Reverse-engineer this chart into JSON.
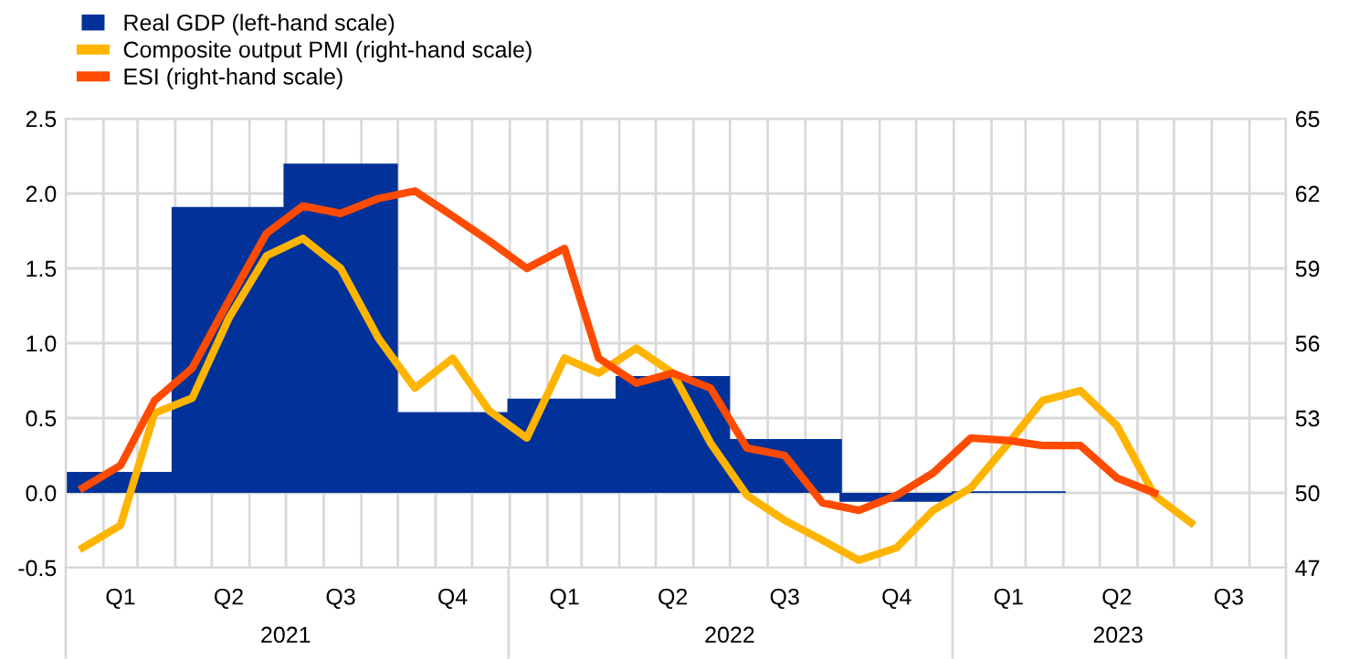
{
  "chart_data": {
    "type": "line",
    "legend": "top left",
    "grid": true,
    "xlim": [
      "2021-01-01",
      "2023-10-01"
    ],
    "xticks": [
      {
        "value": "2021-01-01",
        "label": null
      },
      {
        "value": "2021-02-01",
        "label": null
      },
      {
        "value": "2021-03-01",
        "label": null
      },
      {
        "value": "2021-04-01",
        "label": null
      },
      {
        "value": "2021-05-01",
        "label": null
      },
      {
        "value": "2021-06-01",
        "label": null
      },
      {
        "value": "2021-07-01",
        "label": null
      },
      {
        "value": "2021-08-01",
        "label": null
      },
      {
        "value": "2021-09-01",
        "label": null
      },
      {
        "value": "2021-10-01",
        "label": null
      },
      {
        "value": "2021-11-01",
        "label": null
      },
      {
        "value": "2021-12-01",
        "label": null
      },
      {
        "value": "2022-01-01",
        "label": null
      },
      {
        "value": "2022-02-01",
        "label": null
      },
      {
        "value": "2022-03-01",
        "label": null
      },
      {
        "value": "2022-04-01",
        "label": null
      },
      {
        "value": "2022-05-01",
        "label": null
      },
      {
        "value": "2022-06-01",
        "label": null
      },
      {
        "value": "2022-07-01",
        "label": null
      },
      {
        "value": "2022-08-01",
        "label": null
      },
      {
        "value": "2022-09-01",
        "label": null
      },
      {
        "value": "2022-10-01",
        "label": null
      },
      {
        "value": "2022-11-01",
        "label": null
      },
      {
        "value": "2022-12-01",
        "label": null
      },
      {
        "value": "2023-01-01",
        "label": null
      },
      {
        "value": "2023-02-01",
        "label": null
      },
      {
        "value": "2023-03-01",
        "label": null
      },
      {
        "value": "2023-04-01",
        "label": null
      },
      {
        "value": "2023-05-01",
        "label": null
      },
      {
        "value": "2023-06-01",
        "label": null
      },
      {
        "value": "2023-07-01",
        "label": null
      },
      {
        "value": "2023-08-01",
        "label": null
      },
      {
        "value": "2023-09-01",
        "label": null
      },
      {
        "value": "2023-10-01",
        "label": null
      },
      {
        "value": "2021-02-15",
        "label": "Q1"
      },
      {
        "value": "2021-05-15",
        "label": "Q2"
      },
      {
        "value": "2021-08-15",
        "label": "Q3"
      },
      {
        "value": "2021-11-15",
        "label": "Q4"
      },
      {
        "value": "2022-02-15",
        "label": "Q1"
      },
      {
        "value": "2022-05-15",
        "label": "Q2"
      },
      {
        "value": "2022-08-15",
        "label": "Q3"
      },
      {
        "value": "2022-11-15",
        "label": "Q4"
      },
      {
        "value": "2023-02-15",
        "label": "Q1"
      },
      {
        "value": "2023-05-15",
        "label": "Q2"
      },
      {
        "value": "2023-08-15",
        "label": "Q3"
      }
    ],
    "annotations": [
      "2021",
      "2022",
      "2023"
    ],
    "ylim": [
      -0.5,
      2.5
    ],
    "yticks": [
      -0.5,
      {
        "value": 0,
        "label": "0.0"
      },
      0.5,
      {
        "value": 1,
        "label": "1.0"
      },
      1.5,
      {
        "value": 2,
        "label": "2.0"
      },
      2.5
    ],
    "y2lim": [
      47,
      65
    ],
    "y2ticks": [
      47,
      50,
      53,
      56,
      59,
      62,
      65
    ],
    "series": [
      {
        "name": "Real GDP (left-hand scale)",
        "type": "bar",
        "color": "#003299",
        "x": [
          "2021-02-15",
          "2021-05-15",
          "2021-08-15",
          "2021-11-15",
          "2022-02-15",
          "2022-05-15",
          "2022-08-15",
          "2022-11-15",
          "2023-02-15"
        ],
        "values": [
          0.14,
          1.91,
          2.2,
          0.54,
          0.63,
          0.78,
          0.36,
          -0.06,
          0.01
        ]
      },
      {
        "name": "Composite output PMI (right-hand scale)",
        "axis": "y2",
        "color": "#ffb400",
        "x": [
          "2021-01-15",
          "2021-02-15",
          "2021-03-15",
          "2021-04-15",
          "2021-05-15",
          "2021-06-15",
          "2021-07-15",
          "2021-08-15",
          "2021-09-15",
          "2021-10-15",
          "2021-11-15",
          "2021-12-15",
          "2022-01-15",
          "2022-02-15",
          "2022-03-15",
          "2022-04-15",
          "2022-05-15",
          "2022-06-15",
          "2022-07-15",
          "2022-08-15",
          "2022-09-15",
          "2022-10-15",
          "2022-11-15",
          "2022-12-15",
          "2023-01-15",
          "2023-02-15",
          "2023-03-15",
          "2023-04-15",
          "2023-05-15",
          "2023-06-15",
          "2023-07-15"
        ],
        "values": [
          47.8,
          48.7,
          53.2,
          53.8,
          57.0,
          59.5,
          60.2,
          59.0,
          56.2,
          54.2,
          55.4,
          53.3,
          52.2,
          55.4,
          54.8,
          55.8,
          54.8,
          52.0,
          49.9,
          48.9,
          48.1,
          47.3,
          47.8,
          49.3,
          50.2,
          52.0,
          53.7,
          54.1,
          52.7,
          49.9,
          48.8
        ]
      },
      {
        "name": "ESI (right-hand scale)",
        "axis": "y2",
        "color": "#ff4b00",
        "x": [
          "2021-01-15",
          "2021-02-15",
          "2021-03-15",
          "2021-04-15",
          "2021-05-15",
          "2021-06-15",
          "2021-07-15",
          "2021-08-15",
          "2021-09-15",
          "2021-10-15",
          "2021-11-15",
          "2021-12-15",
          "2022-01-15",
          "2022-02-15",
          "2022-03-15",
          "2022-04-15",
          "2022-05-15",
          "2022-06-15",
          "2022-07-15",
          "2022-08-15",
          "2022-09-15",
          "2022-10-15",
          "2022-11-15",
          "2022-12-15",
          "2023-01-15",
          "2023-02-15",
          "2023-03-15",
          "2023-04-15",
          "2023-05-15",
          "2023-06-15"
        ],
        "values": [
          50.2,
          51.1,
          53.7,
          55.0,
          57.7,
          60.4,
          61.5,
          61.2,
          61.8,
          62.1,
          61.1,
          60.1,
          59.0,
          59.8,
          55.4,
          54.4,
          54.8,
          54.2,
          51.8,
          51.5,
          49.6,
          49.3,
          49.9,
          50.8,
          52.2,
          52.1,
          51.9,
          51.9,
          50.6,
          50.0
        ]
      }
    ]
  }
}
